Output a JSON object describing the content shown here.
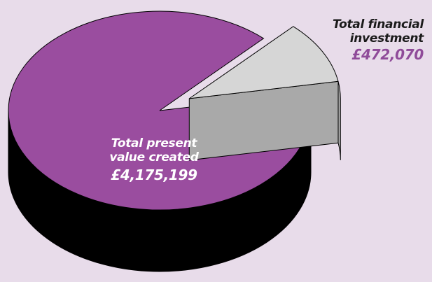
{
  "chart_data": {
    "type": "pie",
    "title": "",
    "slices": [
      {
        "label_lines": [
          "Total present",
          "value created"
        ],
        "value_text": "£4,175,199",
        "value": 4175199,
        "color": "#9a4d9f",
        "side_color": "#000000",
        "exploded": false
      },
      {
        "label_lines": [
          "Total financial",
          "investment"
        ],
        "value_text": "£472,070",
        "value": 472070,
        "color": "#d6d6d6",
        "side_color": "#a9a9a9",
        "exploded": true
      }
    ],
    "label_colors": {
      "value_created_text": "#ffffff",
      "investment_title": "#1a1a1a",
      "investment_value": "#8f4b99"
    },
    "background": "#e8dcea"
  }
}
